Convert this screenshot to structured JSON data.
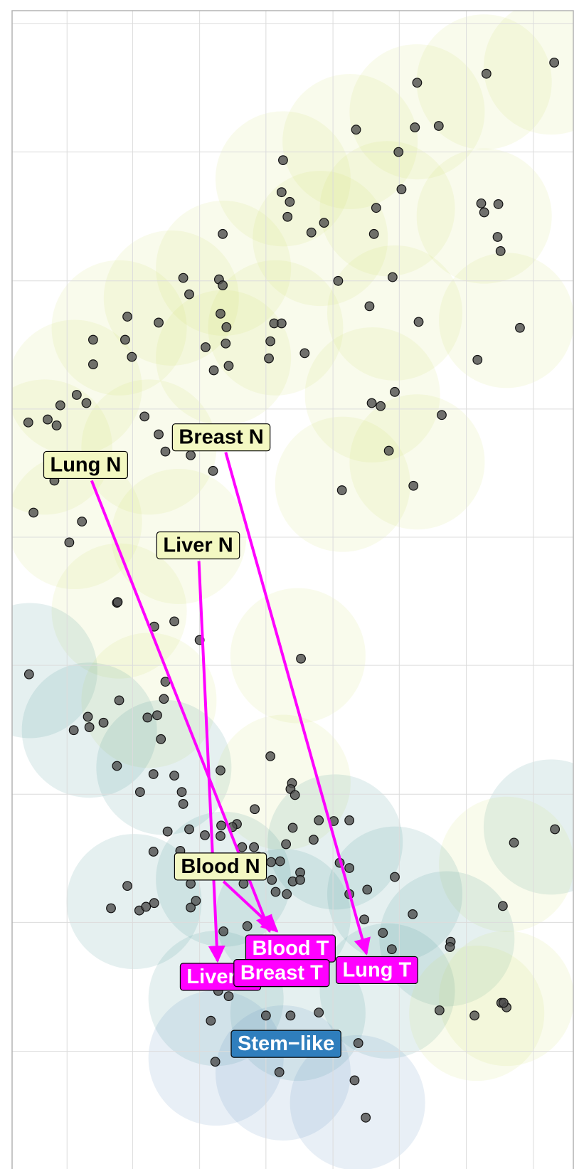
{
  "chart_data": {
    "type": "scatter",
    "x": [
      744,
      653,
      560,
      478,
      557,
      589,
      535,
      380,
      378,
      389,
      539,
      505,
      646,
      669,
      650,
      386,
      435,
      418,
      502,
      299,
      668,
      672,
      246,
      294,
      299,
      254,
      454,
      527,
      496,
      171,
      296,
      213,
      304,
      368,
      378,
      562,
      698,
      125,
      168,
      276,
      303,
      363,
      177,
      361,
      409,
      125,
      287,
      307,
      641,
      103,
      116,
      81,
      499,
      511,
      530,
      38,
      64,
      76,
      194,
      213,
      222,
      256,
      593,
      286,
      522,
      73,
      45,
      110,
      459,
      555,
      93,
      157,
      158,
      207,
      234,
      268,
      404,
      39,
      222,
      160,
      220,
      118,
      99,
      120,
      139,
      198,
      211,
      216,
      157,
      206,
      234,
      296,
      363,
      188,
      244,
      246,
      392,
      390,
      396,
      342,
      297,
      318,
      312,
      428,
      448,
      469,
      225,
      254,
      275,
      296,
      393,
      421,
      206,
      242,
      325,
      341,
      384,
      456,
      469,
      364,
      347,
      376,
      284,
      403,
      393,
      403,
      256,
      365,
      530,
      171,
      327,
      370,
      385,
      493,
      149,
      187,
      196,
      207,
      256,
      263,
      554,
      675,
      690,
      745,
      469,
      332,
      514,
      489,
      526,
      605,
      604,
      673,
      680,
      676,
      590,
      637,
      283,
      357,
      390,
      428,
      307,
      293,
      289,
      375,
      476,
      491,
      481,
      300
    ],
    "y": [
      84,
      99,
      111,
      174,
      171,
      169,
      204,
      215,
      258,
      271,
      254,
      279,
      273,
      274,
      285,
      291,
      299,
      312,
      314,
      314,
      318,
      337,
      373,
      375,
      383,
      395,
      377,
      372,
      411,
      425,
      421,
      433,
      439,
      434,
      434,
      432,
      440,
      456,
      456,
      466,
      461,
      458,
      479,
      481,
      474,
      489,
      497,
      491,
      483,
      530,
      541,
      544,
      541,
      545,
      526,
      567,
      563,
      571,
      559,
      583,
      606,
      611,
      557,
      632,
      605,
      645,
      688,
      700,
      658,
      652,
      728,
      809,
      808,
      841,
      834,
      859,
      884,
      905,
      915,
      940,
      938,
      962,
      980,
      976,
      970,
      963,
      960,
      992,
      1028,
      1039,
      1041,
      1034,
      1015,
      1063,
      1063,
      1079,
      1051,
      1059,
      1067,
      1086,
      1108,
      1106,
      1110,
      1101,
      1102,
      1101,
      1116,
      1113,
      1121,
      1122,
      1111,
      1127,
      1143,
      1142,
      1137,
      1137,
      1133,
      1158,
      1165,
      1157,
      1150,
      1156,
      1160,
      1171,
      1183,
      1181,
      1186,
      1181,
      1177,
      1189,
      1186,
      1197,
      1200,
      1194,
      1219,
      1222,
      1217,
      1212,
      1218,
      1209,
      1227,
      1216,
      1131,
      1113,
      1200,
      1243,
      1252,
      1234,
      1274,
      1264,
      1271,
      1346,
      1352,
      1346,
      1356,
      1363,
      1370,
      1363,
      1363,
      1359,
      1337,
      1330,
      1425,
      1439,
      1450,
      1500,
      1400,
      1250
    ],
    "color": "#4d4d4d",
    "xlim": [
      16,
      770
    ],
    "ylim": [
      1568,
      14
    ],
    "xticks": [
      90,
      178,
      268,
      357,
      447,
      536,
      626,
      716
    ],
    "yticks": [
      32,
      204,
      377,
      549,
      721,
      893,
      1066,
      1238,
      1411,
      1583
    ],
    "grid": true,
    "annotations": [
      "Lung N",
      "Breast N",
      "Liver N",
      "Blood N",
      "Blood T",
      "Liver T",
      "Lung T",
      "Breast T",
      "Stem−like"
    ]
  }
}
